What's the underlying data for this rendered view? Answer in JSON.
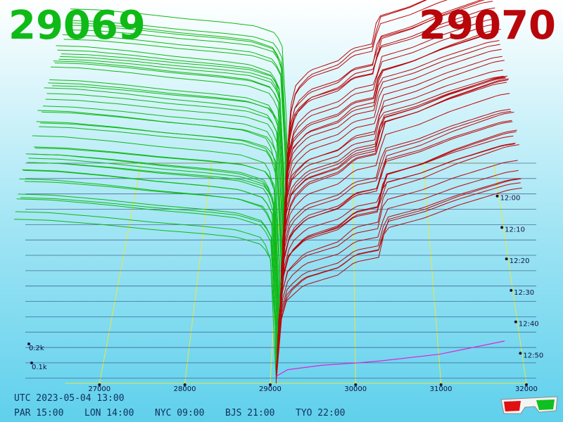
{
  "header": {
    "bid": "29069",
    "ask": "29070"
  },
  "footer": {
    "utc": "UTC 2023-05-04 13:00",
    "cities": [
      {
        "label": "PAR 15:00"
      },
      {
        "label": "LON 14:00"
      },
      {
        "label": "NYC 09:00"
      },
      {
        "label": "BJS 21:00"
      },
      {
        "label": "TYO 22:00"
      }
    ]
  },
  "colors": {
    "bid": "#0fba16",
    "ask": "#b8060a",
    "mid": "#dd22dd",
    "grid": "#e8e840",
    "ticks": "#101040",
    "depth_base": "#2a4878"
  },
  "chart_data": {
    "type": "area",
    "title": "",
    "x_axis": {
      "label": "",
      "ticks": [
        "27000",
        "28000",
        "29000",
        "30000",
        "31000",
        "32000"
      ],
      "range": [
        26000,
        32000
      ]
    },
    "time_axis": {
      "ticks": [
        "12:00",
        "12:10",
        "12:20",
        "12:30",
        "12:40",
        "12:50"
      ],
      "range": [
        "11:50",
        "13:00"
      ]
    },
    "z_axis": {
      "ticks": [
        "0.2k",
        "0.1k"
      ]
    },
    "series": [
      {
        "name": "",
        "side": "bid",
        "price_range": [
          26000,
          29069
        ],
        "profile": [
          [
            26000,
            320
          ],
          [
            26400,
            318
          ],
          [
            27000,
            310
          ],
          [
            27600,
            300
          ],
          [
            28200,
            292
          ],
          [
            28600,
            285
          ],
          [
            28900,
            270
          ],
          [
            29000,
            240
          ],
          [
            29040,
            160
          ],
          [
            29069,
            0
          ]
        ]
      },
      {
        "name": "",
        "side": "ask",
        "price_range": [
          29070,
          32000
        ],
        "profile": [
          [
            29070,
            0
          ],
          [
            29100,
            100
          ],
          [
            29200,
            160
          ],
          [
            29400,
            190
          ],
          [
            29800,
            210
          ],
          [
            30000,
            235
          ],
          [
            30300,
            245
          ],
          [
            30350,
            300
          ],
          [
            30800,
            320
          ],
          [
            31200,
            345
          ],
          [
            31500,
            360
          ],
          [
            31800,
            375
          ],
          [
            32000,
            380
          ]
        ]
      }
    ],
    "legend": "none"
  }
}
